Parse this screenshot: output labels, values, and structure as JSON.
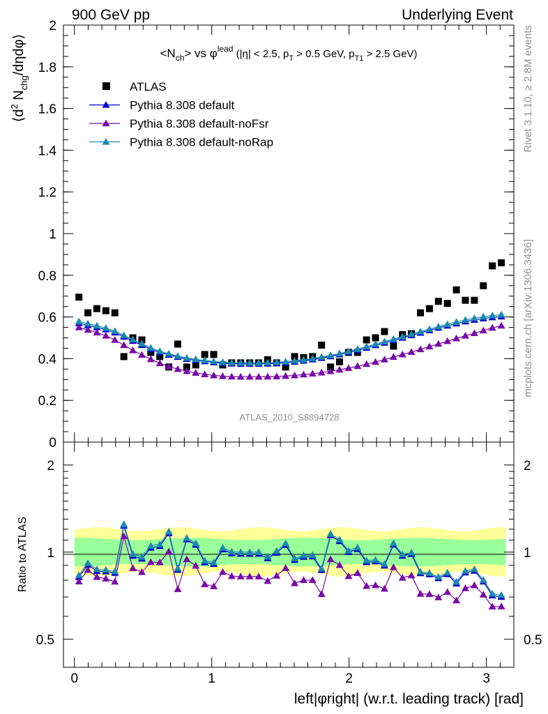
{
  "header": {
    "left": "900 GeV pp",
    "right": "Underlying Event"
  },
  "side_labels": {
    "rivet": "Rivet 3.1.10, ≥ 2.8M events",
    "mcplots": "mcplots.cern.ch [arXiv:1306.3436]"
  },
  "analysis_id": "ATLAS_2010_S8894728",
  "chart_data": {
    "type": "scatter",
    "title": "<N_ch> vs φ^lead (|η| < 2.5, p_T > 0.5 GeV, p_T1 > 2.5 GeV)",
    "xlabel": "left|φright| (w.r.t. leading track) [rad]",
    "ylabel_main": "⟨d² N_chg/dηdφ⟩",
    "ylabel_ratio": "Ratio to ATLAS",
    "xlim": [
      -0.08,
      3.2
    ],
    "ylim_main": [
      0,
      2
    ],
    "ylim_ratio": [
      0.4,
      2.4
    ],
    "ratio_scale": "log",
    "x_ticks": [
      0,
      1,
      2,
      3
    ],
    "y_ticks_main": [
      "0",
      "0.2",
      "0.4",
      "0.6",
      "0.8",
      "1",
      "1.2",
      "1.4",
      "1.6",
      "1.8",
      "2"
    ],
    "y_ticks_ratio": [
      "0.5",
      "1",
      "2"
    ],
    "legend_position": "top-left",
    "x": [
      0.0327,
      0.0982,
      0.1636,
      0.2291,
      0.2945,
      0.36,
      0.4254,
      0.4909,
      0.5563,
      0.6218,
      0.6872,
      0.7527,
      0.8181,
      0.8836,
      0.949,
      1.0145,
      1.0799,
      1.1454,
      1.2108,
      1.2763,
      1.3417,
      1.4072,
      1.4726,
      1.5381,
      1.6035,
      1.669,
      1.7344,
      1.7999,
      1.8653,
      1.9308,
      1.9962,
      2.0617,
      2.1271,
      2.1926,
      2.258,
      2.3235,
      2.3889,
      2.4544,
      2.5198,
      2.5853,
      2.6507,
      2.7162,
      2.7816,
      2.8471,
      2.9125,
      2.978,
      3.0434,
      3.1089
    ],
    "series": [
      {
        "name": "ATLAS",
        "color": "#000000",
        "marker": "square",
        "values": [
          0.695,
          0.62,
          0.64,
          0.63,
          0.62,
          0.41,
          0.5,
          0.49,
          0.43,
          0.41,
          0.36,
          0.47,
          0.36,
          0.37,
          0.42,
          0.42,
          0.37,
          0.38,
          0.38,
          0.38,
          0.38,
          0.395,
          0.38,
          0.36,
          0.41,
          0.405,
          0.41,
          0.465,
          0.36,
          0.385,
          0.43,
          0.43,
          0.49,
          0.5,
          0.53,
          0.46,
          0.515,
          0.52,
          0.62,
          0.64,
          0.675,
          0.665,
          0.73,
          0.68,
          0.68,
          0.75,
          0.845,
          0.86
        ]
      },
      {
        "name": "Pythia 8.308 default",
        "color": "#0000cc",
        "marker": "triangle",
        "values": [
          0.57,
          0.56,
          0.55,
          0.54,
          0.525,
          0.505,
          0.485,
          0.465,
          0.445,
          0.43,
          0.418,
          0.408,
          0.398,
          0.392,
          0.387,
          0.382,
          0.378,
          0.376,
          0.375,
          0.375,
          0.375,
          0.376,
          0.378,
          0.381,
          0.385,
          0.39,
          0.396,
          0.403,
          0.411,
          0.42,
          0.43,
          0.44,
          0.452,
          0.464,
          0.476,
          0.488,
          0.5,
          0.512,
          0.524,
          0.536,
          0.548,
          0.558,
          0.568,
          0.578,
          0.586,
          0.593,
          0.598,
          0.602
        ]
      },
      {
        "name": "Pythia 8.308 default-noFsr",
        "color": "#7a0aa8",
        "marker": "triangle",
        "values": [
          0.55,
          0.538,
          0.525,
          0.51,
          0.49,
          0.465,
          0.44,
          0.418,
          0.397,
          0.378,
          0.362,
          0.35,
          0.34,
          0.332,
          0.325,
          0.32,
          0.316,
          0.314,
          0.313,
          0.313,
          0.313,
          0.314,
          0.315,
          0.317,
          0.32,
          0.324,
          0.328,
          0.333,
          0.34,
          0.347,
          0.355,
          0.364,
          0.374,
          0.384,
          0.396,
          0.408,
          0.42,
          0.432,
          0.445,
          0.458,
          0.471,
          0.484,
          0.497,
          0.51,
          0.522,
          0.535,
          0.548,
          0.558
        ]
      },
      {
        "name": "Pythia 8.308 default-noRap",
        "color": "#1a8ab0",
        "marker": "triangle",
        "values": [
          0.578,
          0.568,
          0.558,
          0.547,
          0.532,
          0.512,
          0.492,
          0.472,
          0.452,
          0.436,
          0.424,
          0.413,
          0.403,
          0.397,
          0.392,
          0.387,
          0.383,
          0.381,
          0.38,
          0.38,
          0.38,
          0.381,
          0.383,
          0.386,
          0.39,
          0.395,
          0.401,
          0.408,
          0.416,
          0.425,
          0.435,
          0.446,
          0.458,
          0.47,
          0.482,
          0.494,
          0.506,
          0.518,
          0.53,
          0.542,
          0.554,
          0.565,
          0.576,
          0.586,
          0.594,
          0.601,
          0.607,
          0.611
        ]
      }
    ]
  }
}
